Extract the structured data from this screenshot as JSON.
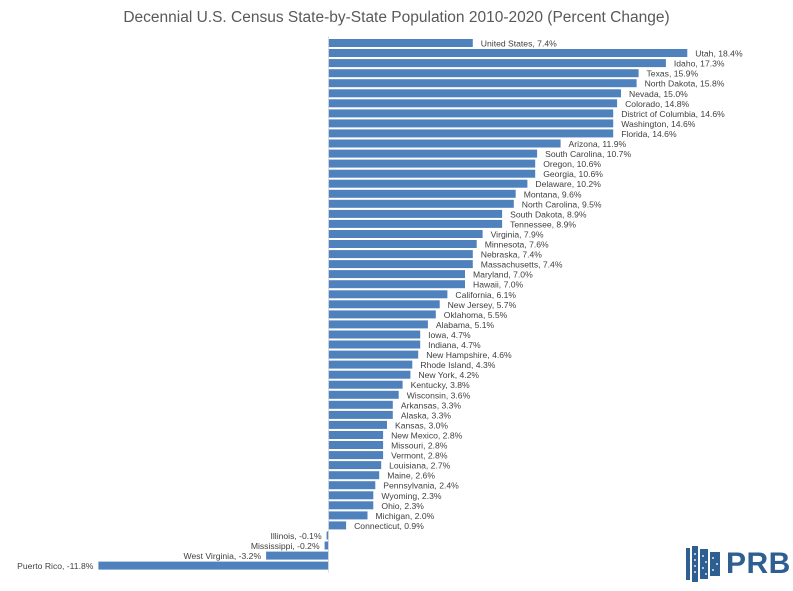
{
  "chart_data": {
    "type": "bar",
    "orientation": "horizontal",
    "title": "Decennial U.S. Census State-by-State Population 2010-2020 (Percent Change)",
    "xlabel": "",
    "ylabel": "",
    "xlim": [
      -12,
      19
    ],
    "bar_color": "#4f81bd",
    "categories": [
      "United States",
      "Utah",
      "Idaho",
      "Texas",
      "North Dakota",
      "Nevada",
      "Colorado",
      "District of Columbia",
      "Washington",
      "Florida",
      "Arizona",
      "South Carolina",
      "Oregon",
      "Georgia",
      "Delaware",
      "Montana",
      "North Carolina",
      "South Dakota",
      "Tennessee",
      "Virginia",
      "Minnesota",
      "Nebraska",
      "Massachusetts",
      "Maryland",
      "Hawaii",
      "California",
      "New Jersey",
      "Oklahoma",
      "Alabama",
      "Iowa",
      "Indiana",
      "New Hampshire",
      "Rhode Island",
      "New York",
      "Kentucky",
      "Wisconsin",
      "Arkansas",
      "Alaska",
      "Kansas",
      "New Mexico",
      "Missouri",
      "Vermont",
      "Louisiana",
      "Maine",
      "Pennsylvania",
      "Wyoming",
      "Ohio",
      "Michigan",
      "Connecticut",
      "Illinois",
      "Mississippi",
      "West Virginia",
      "Puerto Rico"
    ],
    "values": [
      7.4,
      18.4,
      17.3,
      15.9,
      15.8,
      15.0,
      14.8,
      14.6,
      14.6,
      14.6,
      11.9,
      10.7,
      10.6,
      10.6,
      10.2,
      9.6,
      9.5,
      8.9,
      8.9,
      7.9,
      7.6,
      7.4,
      7.4,
      7.0,
      7.0,
      6.1,
      5.7,
      5.5,
      5.1,
      4.7,
      4.7,
      4.6,
      4.3,
      4.2,
      3.8,
      3.6,
      3.3,
      3.3,
      3.0,
      2.8,
      2.8,
      2.8,
      2.7,
      2.6,
      2.4,
      2.3,
      2.3,
      2.0,
      0.9,
      -0.1,
      -0.2,
      -3.2,
      -11.8
    ],
    "data_labels": [
      "United States, 7.4%",
      "Utah, 18.4%",
      "Idaho, 17.3%",
      "Texas, 15.9%",
      "North Dakota, 15.8%",
      "Nevada, 15.0%",
      "Colorado, 14.8%",
      "District of Columbia, 14.6%",
      "Washington, 14.6%",
      "Florida, 14.6%",
      "Arizona, 11.9%",
      "South Carolina, 10.7%",
      "Oregon, 10.6%",
      "Georgia, 10.6%",
      "Delaware, 10.2%",
      "Montana, 9.6%",
      "North Carolina, 9.5%",
      "South Dakota, 8.9%",
      "Tennessee, 8.9%",
      "Virginia, 7.9%",
      "Minnesota, 7.6%",
      "Nebraska, 7.4%",
      "Massachusetts, 7.4%",
      "Maryland, 7.0%",
      "Hawaii, 7.0%",
      "California, 6.1%",
      "New Jersey, 5.7%",
      "Oklahoma, 5.5%",
      "Alabama, 5.1%",
      "Iowa, 4.7%",
      "Indiana, 4.7%",
      "New Hampshire, 4.6%",
      "Rhode Island, 4.3%",
      "New York, 4.2%",
      "Kentucky, 3.8%",
      "Wisconsin, 3.6%",
      "Arkansas, 3.3%",
      "Alaska, 3.3%",
      "Kansas, 3.0%",
      "New Mexico, 2.8%",
      "Missouri, 2.8%",
      "Vermont, 2.8%",
      "Louisiana, 2.7%",
      "Maine, 2.6%",
      "Pennsylvania, 2.4%",
      "Wyoming, 2.3%",
      "Ohio, 2.3%",
      "Michigan, 2.0%",
      "Connecticut, 0.9%",
      "Illinois, -0.1%",
      "Mississippi, -0.2%",
      "West Virginia, -3.2%",
      "Puerto Rico, -11.8%"
    ],
    "grid": false,
    "legend": "none"
  },
  "logo": {
    "text": "PRB",
    "color": "#2e5f91"
  }
}
